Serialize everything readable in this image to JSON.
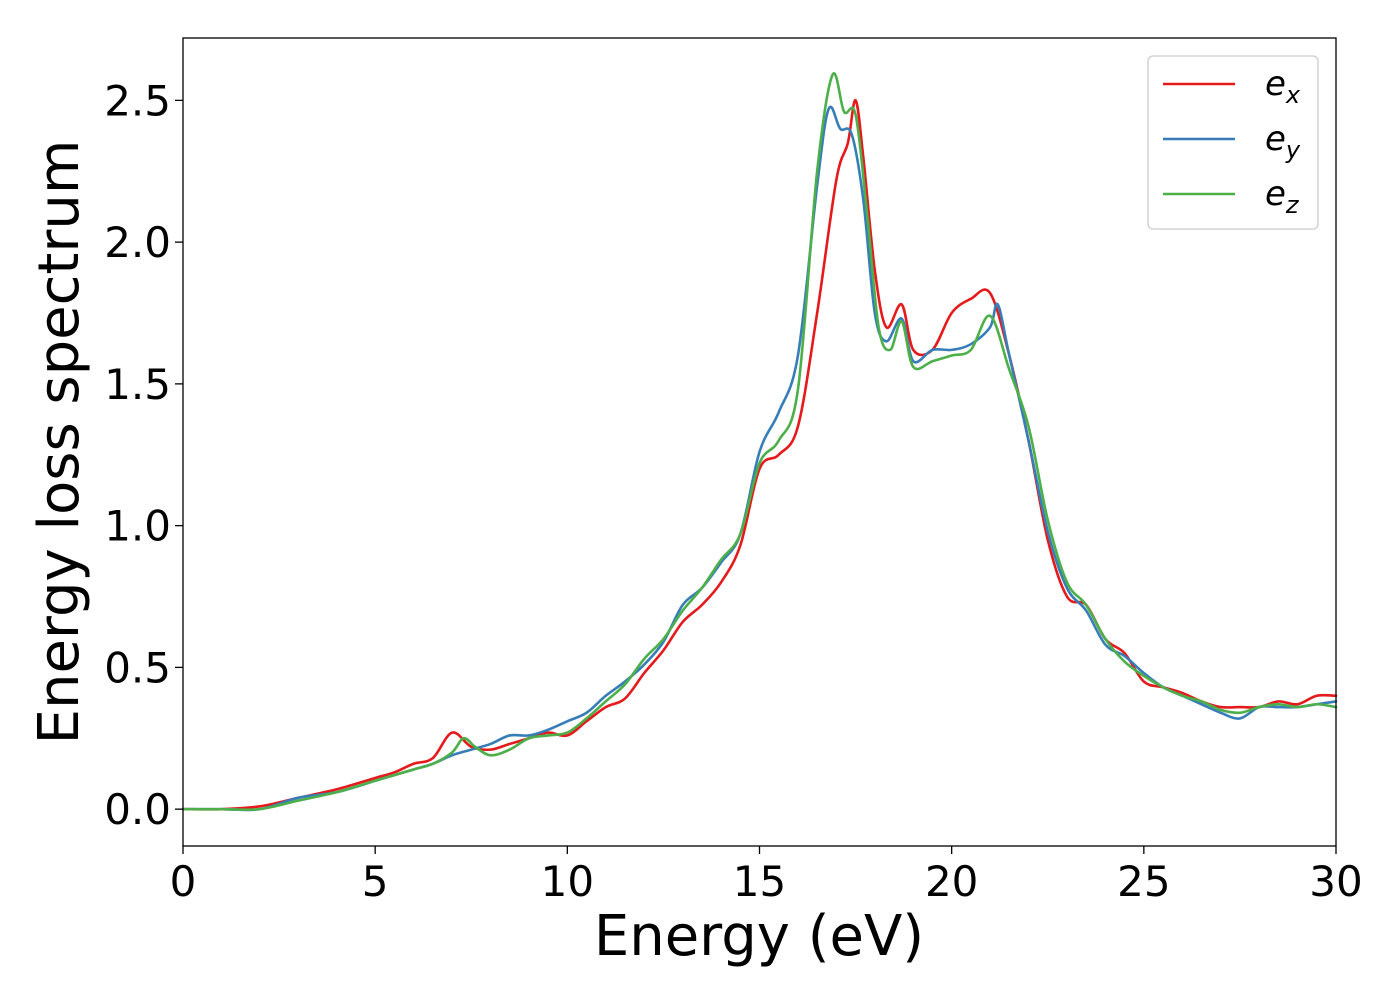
{
  "chart_data": {
    "type": "line",
    "xlabel": "Energy (eV)",
    "ylabel": "Energy loss spectrum",
    "xlim": [
      0,
      30
    ],
    "ylim": [
      -0.13,
      2.72
    ],
    "xticks": [
      0,
      5,
      10,
      15,
      20,
      25,
      30
    ],
    "xtick_labels": [
      "0",
      "5",
      "10",
      "15",
      "20",
      "25",
      "30"
    ],
    "yticks": [
      0.0,
      0.5,
      1.0,
      1.5,
      2.0,
      2.5
    ],
    "ytick_labels": [
      "0.0",
      "0.5",
      "1.0",
      "1.5",
      "2.0",
      "2.5"
    ],
    "grid": false,
    "legend_position": "top-right",
    "series": [
      {
        "name": "e",
        "subscript": "x",
        "color": "#e41a1c",
        "x": [
          0,
          1,
          2,
          3,
          4,
          5,
          5.5,
          6,
          6.5,
          7,
          7.5,
          8,
          8.5,
          9,
          9.5,
          10,
          10.5,
          11,
          11.5,
          12,
          12.5,
          13,
          13.5,
          14,
          14.5,
          15,
          15.5,
          16,
          16.5,
          17,
          17.3,
          17.5,
          17.7,
          18,
          18.3,
          18.7,
          19,
          19.5,
          20,
          20.5,
          21,
          21.5,
          22,
          22.5,
          23,
          23.5,
          24,
          24.5,
          25,
          25.5,
          26,
          26.5,
          27,
          27.5,
          28,
          28.5,
          29,
          29.5,
          30
        ],
        "y": [
          0,
          0,
          0.01,
          0.04,
          0.07,
          0.11,
          0.13,
          0.16,
          0.18,
          0.27,
          0.22,
          0.21,
          0.23,
          0.25,
          0.27,
          0.26,
          0.31,
          0.36,
          0.39,
          0.48,
          0.56,
          0.66,
          0.72,
          0.8,
          0.93,
          1.2,
          1.25,
          1.35,
          1.75,
          2.22,
          2.35,
          2.5,
          2.3,
          1.9,
          1.7,
          1.78,
          1.62,
          1.62,
          1.75,
          1.8,
          1.82,
          1.6,
          1.3,
          0.95,
          0.75,
          0.72,
          0.6,
          0.55,
          0.45,
          0.43,
          0.41,
          0.38,
          0.36,
          0.36,
          0.36,
          0.38,
          0.37,
          0.4,
          0.4
        ]
      },
      {
        "name": "e",
        "subscript": "y",
        "color": "#377eb8",
        "x": [
          0,
          1,
          2,
          3,
          4,
          5,
          5.5,
          6,
          6.5,
          7,
          7.5,
          8,
          8.5,
          9,
          9.5,
          10,
          10.5,
          11,
          11.5,
          12,
          12.5,
          13,
          13.5,
          14,
          14.5,
          15,
          15.5,
          16,
          16.5,
          16.8,
          17.1,
          17.4,
          17.7,
          18,
          18.3,
          18.7,
          19,
          19.5,
          20,
          20.5,
          21,
          21.2,
          21.5,
          22,
          22.5,
          23,
          23.5,
          24,
          24.5,
          25,
          25.5,
          26,
          26.5,
          27,
          27.5,
          28,
          28.5,
          29,
          29.5,
          30
        ],
        "y": [
          0,
          0,
          0,
          0.04,
          0.06,
          0.1,
          0.12,
          0.14,
          0.16,
          0.19,
          0.21,
          0.23,
          0.26,
          0.26,
          0.28,
          0.31,
          0.34,
          0.4,
          0.45,
          0.51,
          0.59,
          0.72,
          0.78,
          0.87,
          0.97,
          1.26,
          1.4,
          1.6,
          2.2,
          2.47,
          2.4,
          2.38,
          2.15,
          1.75,
          1.65,
          1.73,
          1.58,
          1.62,
          1.62,
          1.64,
          1.7,
          1.78,
          1.6,
          1.3,
          0.98,
          0.78,
          0.7,
          0.58,
          0.54,
          0.48,
          0.43,
          0.4,
          0.37,
          0.34,
          0.32,
          0.36,
          0.36,
          0.36,
          0.37,
          0.38
        ]
      },
      {
        "name": "e",
        "subscript": "z",
        "color": "#4daf4a",
        "x": [
          0,
          1,
          2,
          3,
          4,
          5,
          5.5,
          6,
          6.5,
          7,
          7.3,
          7.6,
          8,
          8.5,
          9,
          9.5,
          10,
          10.5,
          11,
          11.5,
          12,
          12.5,
          13,
          13.5,
          14,
          14.5,
          15,
          15.5,
          16,
          16.5,
          16.9,
          17.2,
          17.5,
          17.8,
          18.1,
          18.4,
          18.7,
          19,
          19.5,
          20,
          20.5,
          21,
          21.5,
          22,
          22.5,
          23,
          23.5,
          24,
          24.5,
          25,
          25.5,
          26,
          26.5,
          27,
          27.5,
          28,
          28.5,
          29,
          29.5,
          30
        ],
        "y": [
          0,
          0,
          0,
          0.03,
          0.06,
          0.1,
          0.12,
          0.14,
          0.16,
          0.2,
          0.25,
          0.22,
          0.19,
          0.21,
          0.25,
          0.26,
          0.27,
          0.32,
          0.38,
          0.44,
          0.53,
          0.6,
          0.7,
          0.78,
          0.88,
          0.97,
          1.22,
          1.3,
          1.48,
          2.25,
          2.59,
          2.46,
          2.45,
          2.1,
          1.7,
          1.62,
          1.72,
          1.56,
          1.58,
          1.6,
          1.62,
          1.74,
          1.55,
          1.35,
          1.02,
          0.8,
          0.72,
          0.6,
          0.52,
          0.47,
          0.43,
          0.4,
          0.38,
          0.35,
          0.34,
          0.36,
          0.37,
          0.36,
          0.37,
          0.36
        ]
      }
    ]
  }
}
